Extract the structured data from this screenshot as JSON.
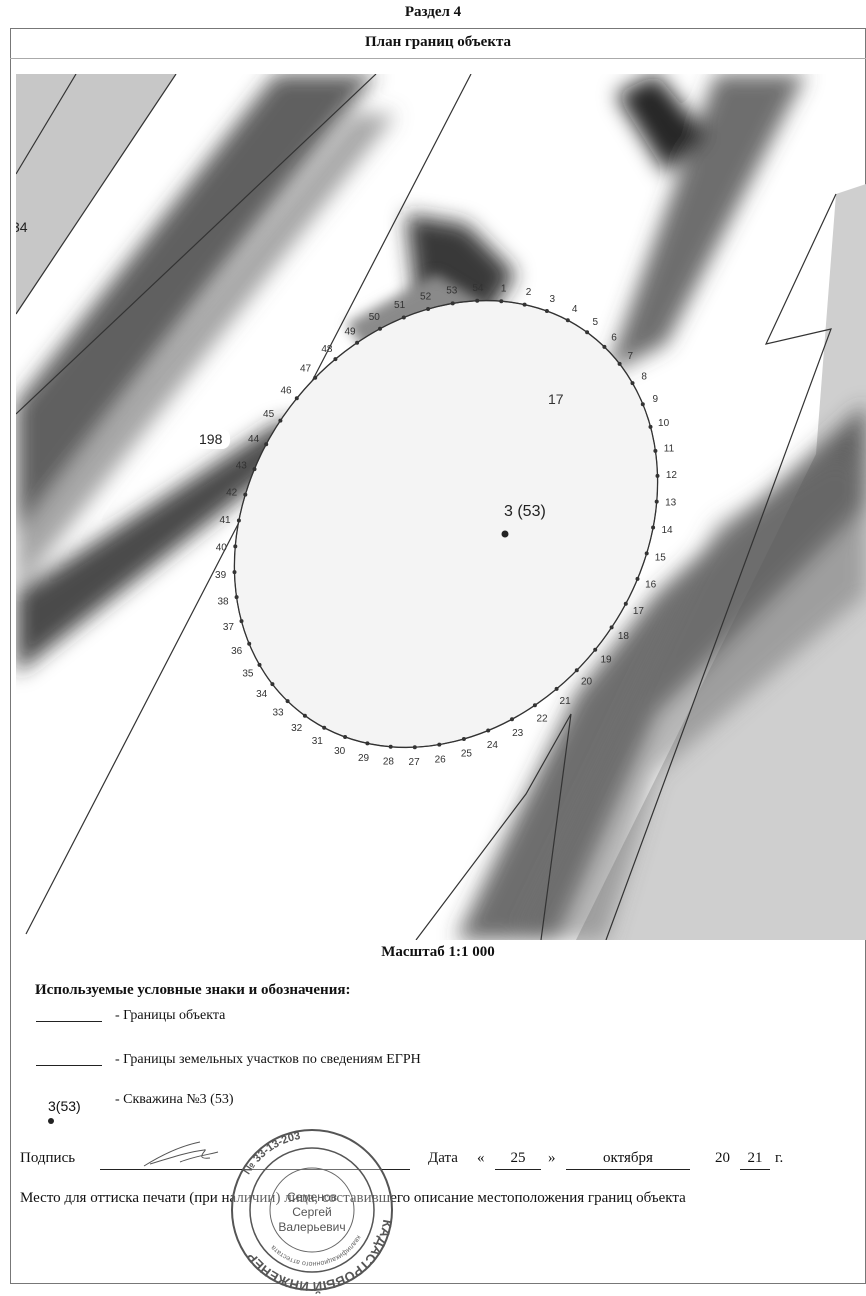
{
  "section": "Раздел 4",
  "plan_title": "План границ объекта",
  "scale": "Масштаб 1:1 000",
  "map": {
    "parcel_labels": [
      "34",
      "198",
      "17"
    ],
    "well_label": "3 (53)",
    "vertex_labels": [
      "1",
      "2",
      "3",
      "4",
      "5",
      "6",
      "7",
      "8",
      "9",
      "10",
      "11",
      "12",
      "13",
      "14",
      "15",
      "16",
      "17",
      "18",
      "19",
      "20",
      "21",
      "22",
      "23",
      "24",
      "25",
      "26",
      "27",
      "28",
      "29",
      "30",
      "31",
      "32",
      "33",
      "34",
      "35",
      "36",
      "37",
      "38",
      "39",
      "40",
      "41",
      "42",
      "43",
      "44",
      "45",
      "46",
      "47",
      "48",
      "49",
      "50",
      "51",
      "52",
      "53",
      "54"
    ]
  },
  "legend": {
    "title": "Используемые условные знаки и обозначения:",
    "items": [
      {
        "label": "- Границы объекта"
      },
      {
        "label": "- Границы земельных участков по сведениям ЕГРН"
      },
      {
        "symbol": "3(53)",
        "label": "- Скважина №3 (53)"
      }
    ]
  },
  "signature": {
    "label": "Подпись",
    "date_label": "Дата",
    "quote_open": "«",
    "day": "25",
    "quote_close": "»",
    "month": "октября",
    "year_prefix": "20",
    "year_suffix": "21",
    "year_unit": "г."
  },
  "seal_line": "Место для оттиска печати (при наличии) лица, составившего описание местоположения границ объекта",
  "stamp": {
    "outer_text": "КАДАСТРОВЫЙ ИНЖЕНЕР",
    "inner_text": "квалификационного аттестата",
    "number": "№ 33-13-203",
    "name_line1": "Семенов",
    "name_line2": "Сергей",
    "name_line3": "Валерьевич"
  },
  "colors": {
    "map_gray": "#c9c9c9",
    "tree_dark": "#2e2e2e",
    "object_fill": "#f2f2f2",
    "text": "#111111"
  }
}
